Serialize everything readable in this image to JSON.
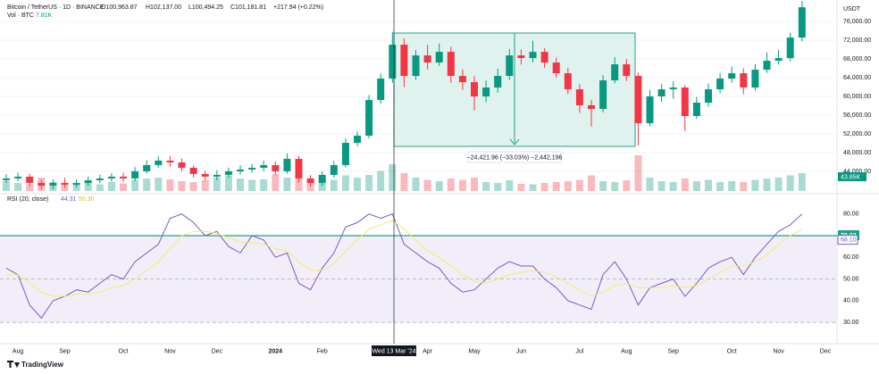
{
  "chart_data": [
    {
      "type": "candlestick",
      "title": "Bitcoin / TetherUS · 1D · BINANCE",
      "ohlc_labels": [
        "O100,963.87",
        "H102,137.00",
        "L100,494.25",
        "C101,181.81"
      ],
      "change": "+217.94 (+0.22%)",
      "currency": "USDT",
      "annotation": "−24,421.96 (−33.03%) −2,442,196",
      "crosshair_label": "Wed 13 Mar '24",
      "up_color": "#089981",
      "down_color": "#f23645",
      "grid": true,
      "categories": [
        null,
        "Aug",
        null,
        null,
        null,
        "Sep",
        null,
        null,
        null,
        null,
        "Oct",
        null,
        null,
        null,
        "Nov",
        null,
        null,
        null,
        "Dec",
        null,
        null,
        null,
        null,
        "2024",
        null,
        null,
        null,
        "Feb",
        null,
        null,
        null,
        null,
        null,
        null,
        null,
        null,
        "Apr",
        null,
        null,
        null,
        "May",
        null,
        null,
        null,
        "Jun",
        null,
        null,
        null,
        null,
        "Jul",
        null,
        null,
        null,
        "Aug",
        null,
        null,
        null,
        "Sep",
        null,
        null,
        null,
        null,
        "Oct",
        null,
        null,
        null,
        "Nov",
        null,
        null,
        null,
        "Dec"
      ],
      "open": [
        42100,
        42480,
        42860,
        41520,
        40950,
        41520,
        41140,
        41520,
        42090,
        42480,
        42860,
        42480,
        44000,
        45330,
        46290,
        45900,
        44760,
        43430,
        42860,
        43240,
        44000,
        44380,
        44760,
        45330,
        44000,
        46670,
        42480,
        41520,
        43240,
        45330,
        50090,
        51620,
        59240,
        63810,
        71050,
        64380,
        68760,
        67240,
        69520,
        64380,
        63050,
        60000,
        61900,
        64380,
        68760,
        68190,
        69520,
        67240,
        64950,
        61520,
        58100,
        57330,
        63430,
        66860,
        64380,
        54290,
        60000,
        61520,
        61900,
        55810,
        58670,
        61520,
        63810,
        64950,
        61900,
        65710,
        67620,
        68190,
        72570,
        null,
        null
      ],
      "high": [
        43400,
        43700,
        43500,
        42200,
        42300,
        42600,
        42300,
        42900,
        43300,
        43600,
        43700,
        44900,
        46400,
        47200,
        47300,
        46700,
        45300,
        44100,
        44200,
        44800,
        45300,
        45600,
        46300,
        46100,
        47800,
        47300,
        43200,
        44000,
        46200,
        51000,
        52500,
        60300,
        64900,
        73800,
        72400,
        69900,
        71000,
        71300,
        70600,
        65800,
        64300,
        63400,
        65900,
        70100,
        70000,
        71900,
        70300,
        68300,
        66100,
        62600,
        59300,
        64500,
        68400,
        68000,
        65100,
        61400,
        62600,
        63200,
        62400,
        59900,
        62800,
        65000,
        66400,
        66000,
        66900,
        69400,
        70000,
        73600,
        80400,
        null,
        null
      ],
      "low": [
        41500,
        41900,
        40800,
        40100,
        40200,
        40500,
        40600,
        40900,
        41500,
        41800,
        41700,
        41900,
        43500,
        44700,
        45000,
        44000,
        42700,
        42000,
        42100,
        42600,
        43300,
        43700,
        44000,
        43200,
        43500,
        41600,
        40700,
        40900,
        42700,
        44800,
        49400,
        51000,
        58500,
        62900,
        62000,
        63500,
        65800,
        66500,
        62900,
        61400,
        57000,
        58800,
        60800,
        63500,
        66800,
        67300,
        66100,
        64000,
        60500,
        56500,
        53600,
        56600,
        62800,
        63300,
        49520,
        53600,
        58800,
        59500,
        52600,
        55200,
        57800,
        60700,
        62900,
        60500,
        61200,
        65000,
        66800,
        67500,
        71800,
        null,
        null
      ],
      "close": [
        42480,
        42860,
        41520,
        40950,
        41520,
        41140,
        41520,
        42090,
        42480,
        42860,
        42480,
        44000,
        45330,
        46290,
        45900,
        44760,
        43430,
        42860,
        43240,
        44000,
        44380,
        44760,
        45330,
        44000,
        46670,
        42480,
        41520,
        43240,
        45330,
        50090,
        51620,
        59240,
        63810,
        71050,
        64380,
        68760,
        67240,
        69520,
        64380,
        63050,
        60000,
        61900,
        64380,
        68760,
        68190,
        69520,
        67240,
        64950,
        61520,
        58100,
        57330,
        63430,
        66860,
        64380,
        54290,
        60000,
        61520,
        61900,
        55810,
        58670,
        61520,
        63810,
        64950,
        61900,
        65710,
        67620,
        68190,
        72570,
        79050,
        null,
        null
      ],
      "ylim": [
        39600,
        80600
      ],
      "yticks": [
        {
          "value": 76000,
          "label": "76,000.00"
        },
        {
          "value": 72000,
          "label": "72,000.00"
        },
        {
          "value": 68000,
          "label": "68,000.00"
        },
        {
          "value": 64000,
          "label": "64,000.00"
        },
        {
          "value": 60000,
          "label": "60,000.00"
        },
        {
          "value": 56000,
          "label": "56,000.00"
        },
        {
          "value": 52000,
          "label": "52,000.00"
        },
        {
          "value": 48000,
          "label": "48,000.00"
        },
        {
          "value": 44000,
          "label": "44,000.00"
        }
      ]
    },
    {
      "type": "bar",
      "title": "Vol · BTC",
      "current": "7.81K",
      "scale_label": "43.85K",
      "up_color": "#089981",
      "down_color": "#f23645",
      "values": [
        22,
        18,
        15,
        30,
        20,
        14,
        16,
        18,
        15,
        20,
        17,
        25,
        28,
        30,
        26,
        22,
        20,
        24,
        30,
        35,
        28,
        25,
        26,
        38,
        30,
        32,
        22,
        18,
        25,
        35,
        30,
        36,
        45,
        60,
        40,
        30,
        25,
        22,
        28,
        25,
        30,
        20,
        18,
        24,
        16,
        15,
        18,
        20,
        22,
        25,
        35,
        22,
        20,
        24,
        80,
        30,
        22,
        20,
        28,
        22,
        25,
        20,
        22,
        20,
        25,
        28,
        30,
        35,
        40,
        null,
        null
      ],
      "ylim": [
        0,
        80
      ]
    },
    {
      "type": "line",
      "title": "RSI (20, close)",
      "readout": [
        "44.31",
        "50.30"
      ],
      "series": [
        {
          "color": "#7e57c2",
          "values": [
            55,
            52,
            38,
            32,
            40,
            42,
            45,
            44,
            48,
            52,
            50,
            58,
            62,
            66,
            78,
            80,
            76,
            70,
            72,
            65,
            62,
            70,
            68,
            60,
            62,
            48,
            45,
            55,
            62,
            74,
            76,
            80,
            78,
            80,
            66,
            62,
            58,
            55,
            48,
            44,
            45,
            50,
            55,
            58,
            56,
            56,
            50,
            46,
            40,
            38,
            36,
            52,
            58,
            50,
            38,
            46,
            48,
            50,
            42,
            48,
            55,
            58,
            60,
            52,
            60,
            66,
            72,
            75,
            80,
            null,
            null
          ]
        },
        {
          "color": "#f2ec6b",
          "values": [
            52,
            52,
            48,
            44,
            42,
            42,
            43,
            43,
            44,
            46,
            47,
            50,
            54,
            58,
            64,
            70,
            72,
            72,
            71,
            69,
            67,
            67,
            66,
            64,
            63,
            58,
            54,
            54,
            57,
            63,
            68,
            73,
            75,
            77,
            73,
            68,
            63,
            60,
            56,
            52,
            49,
            48,
            50,
            52,
            53,
            54,
            53,
            51,
            48,
            45,
            42,
            44,
            47,
            48,
            46,
            46,
            46,
            47,
            46,
            47,
            50,
            53,
            56,
            56,
            58,
            61,
            66,
            70,
            73,
            null,
            null
          ]
        }
      ],
      "hline": 70.02,
      "last_marker": {
        "value": 68.1,
        "label": "68.10"
      },
      "dashed_levels": [
        50,
        30
      ],
      "band_color": "#ede7f6",
      "ylim": [
        24.3,
        87.3
      ],
      "yticks": [
        {
          "value": 80,
          "label": "80.00"
        },
        {
          "value": 60,
          "label": "60.00"
        },
        {
          "value": 50,
          "label": "50.00"
        },
        {
          "value": 40,
          "label": "40.00"
        },
        {
          "value": 30,
          "label": "30.00"
        }
      ]
    }
  ]
}
